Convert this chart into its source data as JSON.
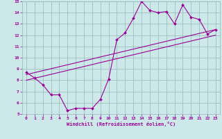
{
  "xlabel": "Windchill (Refroidissement éolien,°C)",
  "bg_color": "#cce8e8",
  "grid_color": "#9bbfbf",
  "line_color": "#990099",
  "xlim": [
    -0.5,
    23.5
  ],
  "ylim": [
    5,
    15
  ],
  "xticks": [
    0,
    1,
    2,
    3,
    4,
    5,
    6,
    7,
    8,
    9,
    10,
    11,
    12,
    13,
    14,
    15,
    16,
    17,
    18,
    19,
    20,
    21,
    22,
    23
  ],
  "yticks": [
    5,
    6,
    7,
    8,
    9,
    10,
    11,
    12,
    13,
    14,
    15
  ],
  "line1_x": [
    0,
    1,
    2,
    3,
    4,
    5,
    6,
    7,
    8,
    9,
    10,
    11,
    12,
    13,
    14,
    15,
    16,
    17,
    18,
    19,
    20,
    21,
    22,
    23
  ],
  "line1_y": [
    8.7,
    8.2,
    7.6,
    6.7,
    6.7,
    5.3,
    5.5,
    5.5,
    5.5,
    6.3,
    8.1,
    11.6,
    12.2,
    13.5,
    15.0,
    14.2,
    14.0,
    14.1,
    13.0,
    14.7,
    13.6,
    13.4,
    12.1,
    12.5
  ],
  "line3_x": [
    0,
    23
  ],
  "line3_y": [
    8.5,
    12.5
  ],
  "line4_x": [
    0,
    23
  ],
  "line4_y": [
    8.0,
    12.0
  ]
}
